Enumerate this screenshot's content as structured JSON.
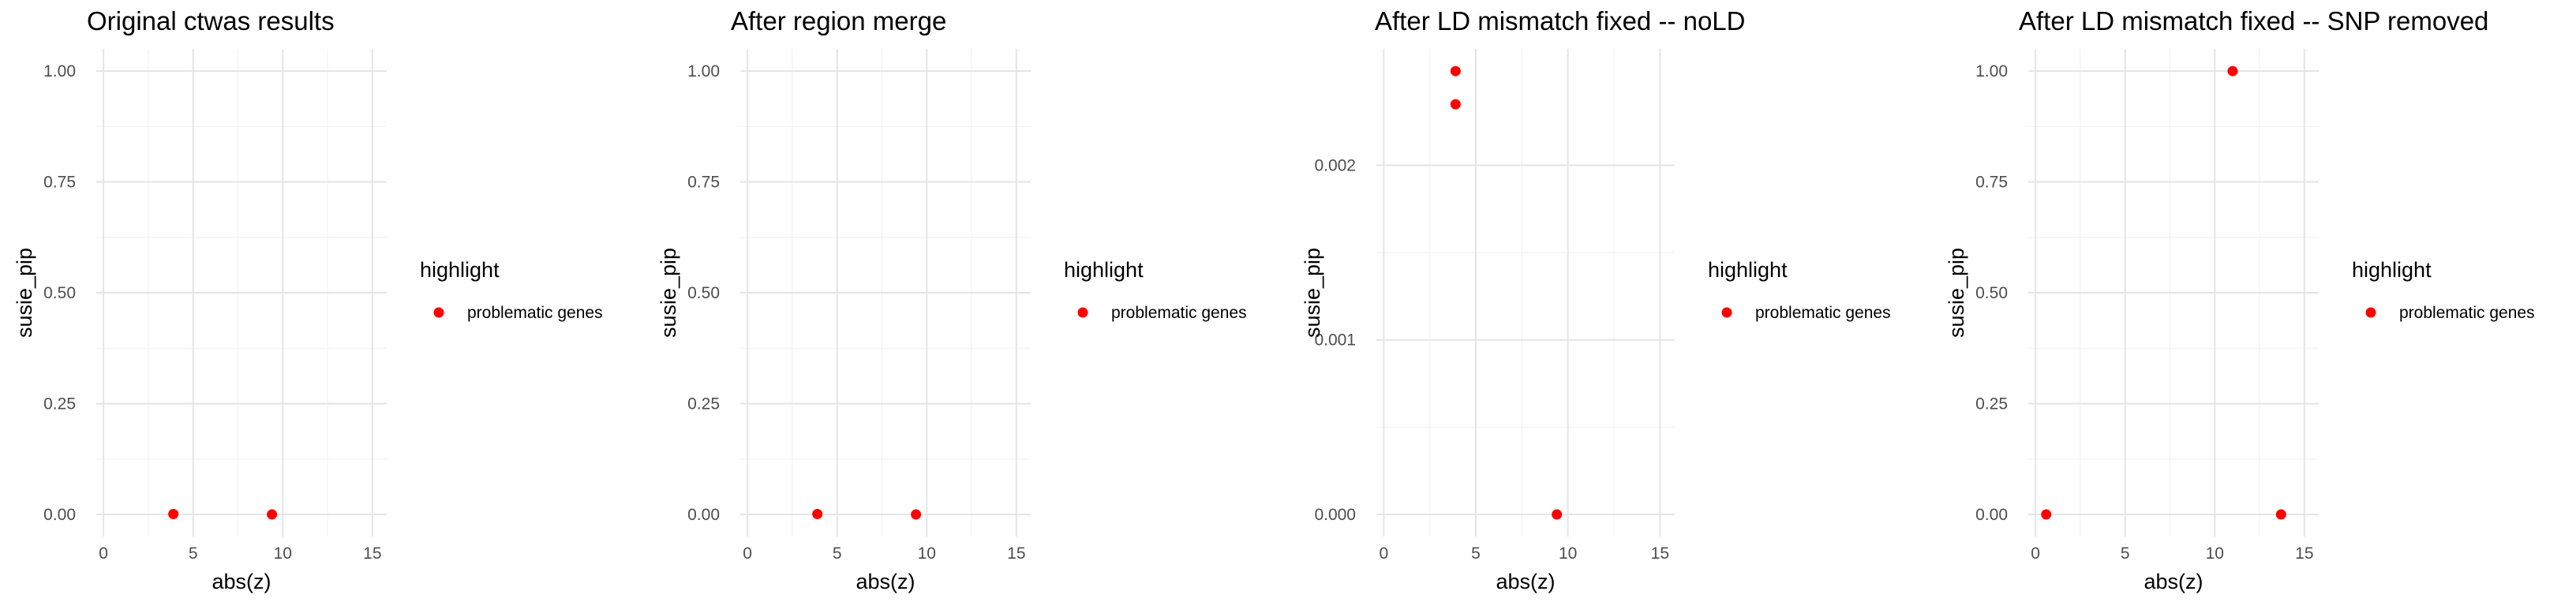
{
  "chart_data": [
    {
      "type": "scatter",
      "title": "Original ctwas results",
      "xlabel": "abs(z)",
      "ylabel": "susie_pip",
      "xlim": [
        -0.4,
        15.8
      ],
      "ylim": [
        -0.05,
        1.05
      ],
      "xticks": [
        0,
        5,
        10,
        15
      ],
      "xtick_labels": [
        "0",
        "5",
        "10",
        "15"
      ],
      "yticks": [
        0,
        0.25,
        0.5,
        0.75,
        1.0
      ],
      "ytick_labels": [
        "0.00",
        "0.25",
        "0.50",
        "0.75",
        "1.00"
      ],
      "grid": true,
      "legend": {
        "title": "highlight",
        "items": [
          {
            "label": "problematic genes",
            "color": "#ff0000"
          }
        ],
        "position": "right"
      },
      "series": [
        {
          "name": "problematic genes",
          "color": "#ff0000",
          "points": [
            {
              "x": 3.9,
              "y": 0.001
            },
            {
              "x": 9.4,
              "y": 0.0
            }
          ]
        }
      ]
    },
    {
      "type": "scatter",
      "title": "After region merge",
      "xlabel": "abs(z)",
      "ylabel": "susie_pip",
      "xlim": [
        -0.4,
        15.8
      ],
      "ylim": [
        -0.05,
        1.05
      ],
      "xticks": [
        0,
        5,
        10,
        15
      ],
      "xtick_labels": [
        "0",
        "5",
        "10",
        "15"
      ],
      "yticks": [
        0,
        0.25,
        0.5,
        0.75,
        1.0
      ],
      "ytick_labels": [
        "0.00",
        "0.25",
        "0.50",
        "0.75",
        "1.00"
      ],
      "grid": true,
      "legend": {
        "title": "highlight",
        "items": [
          {
            "label": "problematic genes",
            "color": "#ff0000"
          }
        ],
        "position": "right"
      },
      "series": [
        {
          "name": "problematic genes",
          "color": "#ff0000",
          "points": [
            {
              "x": 3.9,
              "y": 0.001
            },
            {
              "x": 9.4,
              "y": 0.0
            }
          ]
        }
      ]
    },
    {
      "type": "scatter",
      "title": "After LD mismatch fixed -- noLD",
      "xlabel": "abs(z)",
      "ylabel": "susie_pip",
      "xlim": [
        -0.4,
        15.8
      ],
      "ylim": [
        -0.000127,
        0.002667
      ],
      "xticks": [
        0,
        5,
        10,
        15
      ],
      "xtick_labels": [
        "0",
        "5",
        "10",
        "15"
      ],
      "yticks": [
        0,
        0.001,
        0.002
      ],
      "ytick_labels": [
        "0.000",
        "0.001",
        "0.002"
      ],
      "grid": true,
      "legend": {
        "title": "highlight",
        "items": [
          {
            "label": "problematic genes",
            "color": "#ff0000"
          }
        ],
        "position": "right"
      },
      "series": [
        {
          "name": "problematic genes",
          "color": "#ff0000",
          "points": [
            {
              "x": 3.9,
              "y": 0.00254
            },
            {
              "x": 3.9,
              "y": 0.00235
            },
            {
              "x": 9.4,
              "y": 0.0
            }
          ]
        }
      ]
    },
    {
      "type": "scatter",
      "title": "After LD mismatch fixed -- SNP removed",
      "xlabel": "abs(z)",
      "ylabel": "susie_pip",
      "xlim": [
        -0.4,
        15.8
      ],
      "ylim": [
        -0.05,
        1.05
      ],
      "xticks": [
        0,
        5,
        10,
        15
      ],
      "xtick_labels": [
        "0",
        "5",
        "10",
        "15"
      ],
      "yticks": [
        0,
        0.25,
        0.5,
        0.75,
        1.0
      ],
      "ytick_labels": [
        "0.00",
        "0.25",
        "0.50",
        "0.75",
        "1.00"
      ],
      "grid": true,
      "legend": {
        "title": "highlight",
        "items": [
          {
            "label": "problematic genes",
            "color": "#ff0000"
          }
        ],
        "position": "right"
      },
      "series": [
        {
          "name": "problematic genes",
          "color": "#ff0000",
          "points": [
            {
              "x": 0.6,
              "y": 0.0
            },
            {
              "x": 11.0,
              "y": 1.0
            },
            {
              "x": 13.7,
              "y": 0.0
            }
          ]
        }
      ]
    }
  ]
}
